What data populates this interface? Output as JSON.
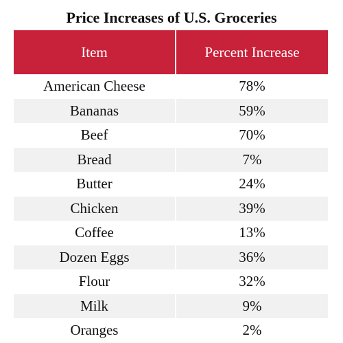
{
  "title": "Price Increases of U.S. Groceries",
  "colors": {
    "header_bg": "#c8213a",
    "header_text": "#ffffff",
    "row_alt": "#f1f1f1",
    "row_white": "#ffffff"
  },
  "table": {
    "columns": [
      "Item",
      "Percent Increase"
    ],
    "rows": [
      {
        "item": "American Cheese",
        "percent": "78%"
      },
      {
        "item": "Bananas",
        "percent": "59%"
      },
      {
        "item": "Beef",
        "percent": "70%"
      },
      {
        "item": "Bread",
        "percent": "7%"
      },
      {
        "item": "Butter",
        "percent": "24%"
      },
      {
        "item": "Chicken",
        "percent": "39%"
      },
      {
        "item": "Coffee",
        "percent": "13%"
      },
      {
        "item": "Dozen Eggs",
        "percent": "36%"
      },
      {
        "item": "Flour",
        "percent": "32%"
      },
      {
        "item": "Milk",
        "percent": "9%"
      },
      {
        "item": "Oranges",
        "percent": "2%"
      }
    ]
  }
}
